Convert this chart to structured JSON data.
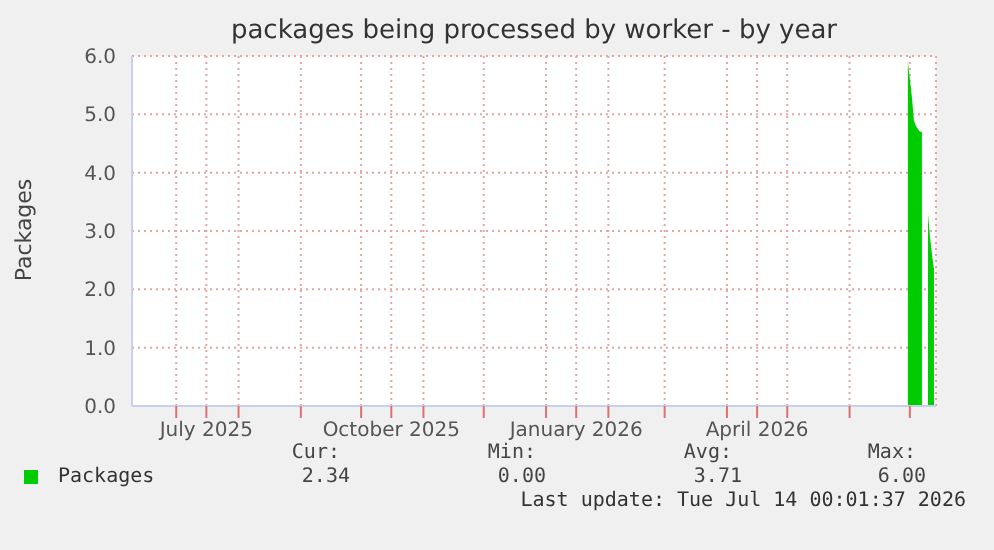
{
  "chart_data": {
    "type": "area",
    "title": "packages being processed by worker - by year",
    "ylabel": "Packages",
    "x": [
      "2026-06-30",
      "2026-07-01",
      "2026-07-02",
      "2026-07-03",
      "2026-07-04",
      "2026-07-05",
      "2026-07-06",
      "2026-07-07",
      "2026-07-08",
      "2026-07-09",
      "2026-07-10",
      "2026-07-11",
      "2026-07-12",
      "2026-07-13"
    ],
    "series": [
      {
        "name": "Packages",
        "color": "#00cc00",
        "values": [
          5.9,
          5.6,
          5.3,
          4.9,
          4.8,
          4.75,
          4.7,
          4.7,
          null,
          null,
          3.3,
          2.9,
          2.6,
          2.34
        ]
      }
    ],
    "xlim": [
      "2025-06-09",
      "2026-07-14"
    ],
    "xticks": [
      {
        "value": "2025-07-01",
        "label": null
      },
      {
        "value": "2025-07-16",
        "label": "July 2025"
      },
      {
        "value": "2025-08-01",
        "label": null
      },
      {
        "value": "2025-09-01",
        "label": null
      },
      {
        "value": "2025-10-01",
        "label": null
      },
      {
        "value": "2025-10-16",
        "label": "October 2025"
      },
      {
        "value": "2025-11-01",
        "label": null
      },
      {
        "value": "2025-12-01",
        "label": null
      },
      {
        "value": "2026-01-01",
        "label": null
      },
      {
        "value": "2026-01-16",
        "label": "January 2026"
      },
      {
        "value": "2026-02-01",
        "label": null
      },
      {
        "value": "2026-03-01",
        "label": null
      },
      {
        "value": "2026-04-01",
        "label": null
      },
      {
        "value": "2026-04-16",
        "label": "April 2026"
      },
      {
        "value": "2026-05-01",
        "label": null
      },
      {
        "value": "2026-06-01",
        "label": null
      },
      {
        "value": "2026-07-01",
        "label": null
      }
    ],
    "ylim": [
      0,
      6
    ],
    "yticks": [
      {
        "value": 0,
        "label": "0.0"
      },
      {
        "value": 1,
        "label": "1.0"
      },
      {
        "value": 2,
        "label": "2.0"
      },
      {
        "value": 3,
        "label": "3.0"
      },
      {
        "value": 4,
        "label": "4.0"
      },
      {
        "value": 5,
        "label": "5.0"
      },
      {
        "value": 6,
        "label": "6.0"
      }
    ],
    "grid": true,
    "legend": "bottom",
    "annotations": [
      "Cur:",
      "Min:",
      "Avg:",
      "Max:",
      "2.34",
      "0.00",
      "3.71",
      "6.00",
      "Last update: Tue Jul 14 00:01:37 2026"
    ]
  }
}
